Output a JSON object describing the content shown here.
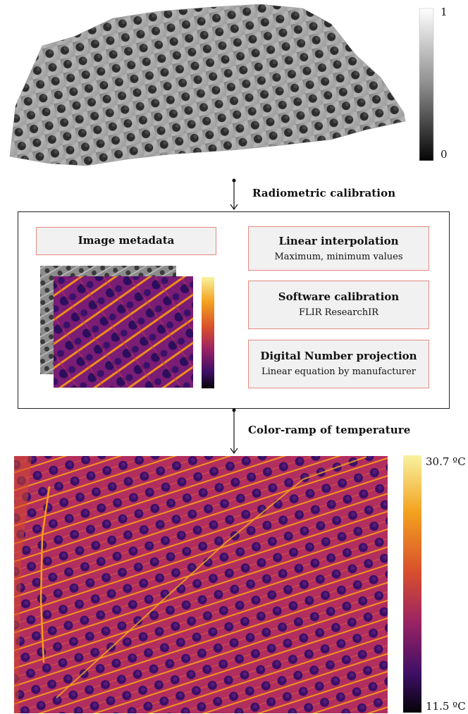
{
  "top_section": {
    "grayscale_scale": {
      "max_label": "1",
      "min_label": "0"
    }
  },
  "arrows": {
    "first_label": "Radiometric calibration",
    "second_label": "Color-ramp of temperature"
  },
  "process_box": {
    "metadata_box": {
      "title": "Image metadata"
    },
    "steps": [
      {
        "title": "Linear interpolation",
        "subtitle": "Maximum, minimum values"
      },
      {
        "title": "Software calibration",
        "subtitle": "FLIR ResearchIR"
      },
      {
        "title": "Digital Number projection",
        "subtitle": "Linear equation by manufacturer"
      }
    ]
  },
  "bottom_section": {
    "temperature_scale": {
      "max_label": "30.7 ºC",
      "min_label": "11.5 ºC"
    }
  },
  "colors": {
    "box_border": "#e58a82",
    "box_fill": "#f1f1f1",
    "inferno_dark": "#0b0514",
    "inferno_purple": "#4a0f70",
    "inferno_red": "#b8325a",
    "inferno_orange": "#ef7a1c",
    "inferno_yellow": "#f6f29a"
  }
}
